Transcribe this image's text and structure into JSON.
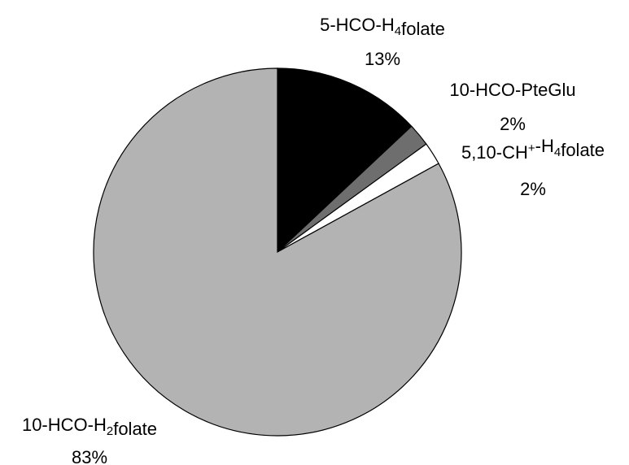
{
  "chart_data": {
    "type": "pie",
    "start": "12 o'clock",
    "direction": "clockwise",
    "slices": [
      {
        "name_parts": [
          {
            "t": "5-HCO-H"
          },
          {
            "t": "4",
            "s": "sub"
          },
          {
            "t": "folate"
          }
        ],
        "label": "5-HCO-H4folate",
        "value": 13,
        "pct_label": "13%",
        "color": "#000000"
      },
      {
        "name_parts": [
          {
            "t": "10-HCO-PteGlu"
          }
        ],
        "label": "10-HCO-PteGlu",
        "value": 2,
        "pct_label": "2%",
        "color": "#6e6e6e"
      },
      {
        "name_parts": [
          {
            "t": "5,10-CH"
          },
          {
            "t": "+",
            "s": "sup"
          },
          {
            "t": "-H"
          },
          {
            "t": "4",
            "s": "sub"
          },
          {
            "t": "folate"
          }
        ],
        "label": "5,10-CH+-H4folate",
        "value": 2,
        "pct_label": "2%",
        "color": "#ffffff"
      },
      {
        "name_parts": [
          {
            "t": "10-HCO-H"
          },
          {
            "t": "2",
            "s": "sub"
          },
          {
            "t": "folate"
          }
        ],
        "label": "10-HCO-H2folate",
        "value": 83,
        "pct_label": "83%",
        "color": "#b3b3b3"
      }
    ],
    "edge_color": "#000000",
    "legend": "none"
  }
}
